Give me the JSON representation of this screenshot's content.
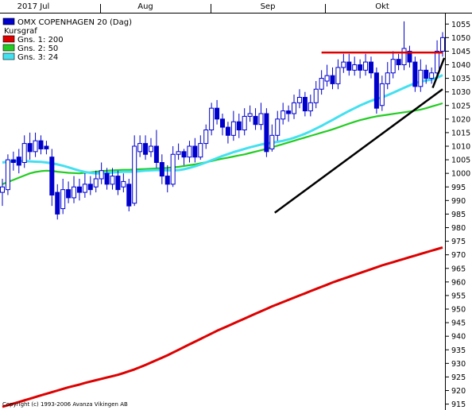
{
  "chart_data": {
    "type": "candlestick",
    "title": "",
    "months": [
      "2017 Jul",
      "Aug",
      "Sep",
      "Okt"
    ],
    "y_ticks": [
      1055,
      1050,
      1045,
      1040,
      1035,
      1030,
      1025,
      1020,
      1015,
      1010,
      1005,
      1000,
      995,
      990,
      985,
      980,
      975,
      970,
      965,
      960,
      955,
      950,
      945,
      940,
      935,
      930,
      925,
      920,
      915
    ],
    "ylim": [
      914,
      1058
    ],
    "legend": [
      {
        "label": "OMX COPENHAGEN 20 (Dag)",
        "color": "#0000cc"
      },
      {
        "label": "Kursgraf",
        "color": ""
      },
      {
        "label": "Gns. 1: 200",
        "color": "#dd0000"
      },
      {
        "label": "Gns. 2: 50",
        "color": "#22cc22"
      },
      {
        "label": "Gns. 3: 24",
        "color": "#44e0f0"
      }
    ],
    "copyright": "Copyright (c) 1993-2006 Avanza Vikingen AB",
    "candles": [
      [
        993,
        995,
        998,
        988
      ],
      [
        994,
        1005,
        1007,
        992
      ],
      [
        1005,
        1004,
        1008,
        1001
      ],
      [
        1006,
        1003,
        1009,
        1000
      ],
      [
        1004,
        1011,
        1014,
        1002
      ],
      [
        1011,
        1008,
        1015,
        1005
      ],
      [
        1008,
        1012,
        1015,
        1006
      ],
      [
        1012,
        1009,
        1014,
        1007
      ],
      [
        1010,
        1009,
        1012,
        1007
      ],
      [
        1006,
        992,
        1009,
        988
      ],
      [
        993,
        985,
        996,
        983
      ],
      [
        987,
        994,
        998,
        985
      ],
      [
        994,
        991,
        997,
        989
      ],
      [
        991,
        995,
        999,
        989
      ],
      [
        995,
        993,
        998,
        990
      ],
      [
        993,
        996,
        1000,
        991
      ],
      [
        996,
        994,
        999,
        992
      ],
      [
        995,
        998,
        1001,
        993
      ],
      [
        998,
        1001,
        1004,
        996
      ],
      [
        1000,
        996,
        1002,
        994
      ],
      [
        996,
        999,
        1002,
        994
      ],
      [
        999,
        994,
        1001,
        992
      ],
      [
        995,
        997,
        1000,
        993
      ],
      [
        996,
        988,
        998,
        986
      ],
      [
        989,
        1010,
        1014,
        988
      ],
      [
        1008,
        1011,
        1014,
        1006
      ],
      [
        1011,
        1007,
        1014,
        1005
      ],
      [
        1008,
        1010,
        1013,
        1006
      ],
      [
        1010,
        1004,
        1016,
        1002
      ],
      [
        1004,
        999,
        1007,
        996
      ],
      [
        999,
        996,
        1003,
        993
      ],
      [
        996,
        1007,
        1010,
        995
      ],
      [
        1007,
        1008,
        1011,
        1005
      ],
      [
        1008,
        1006,
        1009,
        1003
      ],
      [
        1006,
        1010,
        1012,
        1004
      ],
      [
        1010,
        1006,
        1013,
        1004
      ],
      [
        1006,
        1011,
        1014,
        1005
      ],
      [
        1011,
        1016,
        1018,
        1009
      ],
      [
        1016,
        1024,
        1026,
        1014
      ],
      [
        1024,
        1020,
        1027,
        1018
      ],
      [
        1020,
        1017,
        1022,
        1014
      ],
      [
        1017,
        1014,
        1019,
        1011
      ],
      [
        1014,
        1019,
        1023,
        1012
      ],
      [
        1019,
        1016,
        1022,
        1013
      ],
      [
        1016,
        1021,
        1024,
        1014
      ],
      [
        1021,
        1022,
        1025,
        1019
      ],
      [
        1021,
        1018,
        1024,
        1016
      ],
      [
        1018,
        1022,
        1026,
        1016
      ],
      [
        1022,
        1008,
        1024,
        1006
      ],
      [
        1009,
        1014,
        1018,
        1008
      ],
      [
        1014,
        1020,
        1023,
        1012
      ],
      [
        1020,
        1023,
        1026,
        1018
      ],
      [
        1023,
        1022,
        1025,
        1019
      ],
      [
        1022,
        1026,
        1029,
        1020
      ],
      [
        1026,
        1028,
        1031,
        1024
      ],
      [
        1028,
        1023,
        1030,
        1021
      ],
      [
        1023,
        1026,
        1029,
        1021
      ],
      [
        1026,
        1031,
        1034,
        1024
      ],
      [
        1031,
        1035,
        1038,
        1029
      ],
      [
        1034,
        1036,
        1040,
        1032
      ],
      [
        1036,
        1033,
        1039,
        1031
      ],
      [
        1033,
        1039,
        1042,
        1031
      ],
      [
        1039,
        1041,
        1044,
        1037
      ],
      [
        1041,
        1038,
        1044,
        1036
      ],
      [
        1038,
        1040,
        1043,
        1036
      ],
      [
        1040,
        1038,
        1042,
        1035
      ],
      [
        1038,
        1041,
        1044,
        1036
      ],
      [
        1041,
        1037,
        1043,
        1035
      ],
      [
        1037,
        1024,
        1039,
        1022
      ],
      [
        1025,
        1033,
        1036,
        1023
      ],
      [
        1033,
        1037,
        1041,
        1031
      ],
      [
        1037,
        1042,
        1045,
        1035
      ],
      [
        1042,
        1040,
        1044,
        1038
      ],
      [
        1040,
        1046,
        1056,
        1038
      ],
      [
        1045,
        1041,
        1047,
        1039
      ],
      [
        1041,
        1032,
        1043,
        1030
      ],
      [
        1032,
        1038,
        1042,
        1030
      ],
      [
        1038,
        1035,
        1040,
        1033
      ],
      [
        1035,
        1037,
        1039,
        1033
      ],
      [
        1037,
        1045,
        1049,
        1035
      ],
      [
        1045,
        1050,
        1052,
        1043
      ]
    ],
    "ma200": [
      914,
      914.6,
      915.2,
      915.8,
      916.4,
      917,
      917.6,
      918.2,
      918.8,
      919.4,
      920,
      920.6,
      921.2,
      921.7,
      922.2,
      922.8,
      923.3,
      923.8,
      924.3,
      924.8,
      925.3,
      925.8,
      926.4,
      927.1,
      927.8,
      928.6,
      929.4,
      930.3,
      931.2,
      932.1,
      933,
      934,
      935,
      936,
      937,
      938,
      939,
      940,
      941,
      942,
      942.9,
      943.8,
      944.7,
      945.6,
      946.5,
      947.4,
      948.3,
      949.2,
      950.1,
      951,
      951.8,
      952.6,
      953.4,
      954.2,
      955,
      955.8,
      956.6,
      957.4,
      958.2,
      959,
      959.8,
      960.5,
      961.2,
      961.9,
      962.6,
      963.3,
      964,
      964.7,
      965.4,
      966.1,
      966.7,
      967.3,
      967.9,
      968.5,
      969.1,
      969.7,
      970.3,
      970.9,
      971.5,
      972.1,
      972.7
    ],
    "ma50": [
      996,
      996.8,
      997.6,
      998.4,
      999.2,
      1000,
      1000.5,
      1000.8,
      1001,
      1000.9,
      1000.6,
      1000.4,
      1000.2,
      1000.1,
      1000,
      1000.2,
      1000.4,
      1000.6,
      1000.8,
      1001,
      1001.1,
      1001.2,
      1001.3,
      1001.3,
      1001.4,
      1001.5,
      1001.6,
      1001.7,
      1001.8,
      1001.9,
      1002,
      1002.2,
      1002.4,
      1002.7,
      1003,
      1003.3,
      1003.7,
      1004.1,
      1004.5,
      1005,
      1005.4,
      1005.8,
      1006.2,
      1006.6,
      1007,
      1007.5,
      1008,
      1008.5,
      1009,
      1009.6,
      1010.2,
      1010.8,
      1011.4,
      1012,
      1012.6,
      1013.2,
      1013.8,
      1014.4,
      1015,
      1015.6,
      1016.2,
      1016.9,
      1017.6,
      1018.3,
      1019,
      1019.6,
      1020.1,
      1020.6,
      1021,
      1021.3,
      1021.6,
      1021.9,
      1022.2,
      1022.5,
      1022.8,
      1023.1,
      1023.5,
      1024,
      1024.6,
      1025.2,
      1025.8
    ],
    "ma24": [
      1004,
      1004.3,
      1004.5,
      1004.6,
      1004.5,
      1004.4,
      1004.3,
      1004.2,
      1004,
      1003.7,
      1003.3,
      1002.8,
      1002.2,
      1001.6,
      1001,
      1000.5,
      1000.2,
      1000,
      1000,
      1000.1,
      1000.3,
      1000.5,
      1000.6,
      1000.6,
      1000.6,
      1000.8,
      1001,
      1001.1,
      1001.2,
      1001.2,
      1001.1,
      1001.1,
      1001.2,
      1001.5,
      1002,
      1002.6,
      1003.3,
      1004,
      1004.8,
      1005.6,
      1006.4,
      1007.1,
      1007.8,
      1008.4,
      1009,
      1009.6,
      1010.1,
      1010.6,
      1011,
      1011.3,
      1011.6,
      1012,
      1012.5,
      1013.1,
      1013.8,
      1014.6,
      1015.5,
      1016.5,
      1017.5,
      1018.6,
      1019.7,
      1020.8,
      1021.9,
      1023,
      1024,
      1025,
      1025.9,
      1026.7,
      1027.4,
      1028,
      1028.8,
      1029.7,
      1030.6,
      1031.5,
      1032.4,
      1033.2,
      1033.8,
      1034.2,
      1034.6,
      1035.2,
      1036.2
    ],
    "trendlines": [
      {
        "color": "#000000",
        "from": [
          49.5,
          985.5
        ],
        "to": [
          80,
          1031
        ]
      },
      {
        "color": "#dd0000",
        "from": [
          58,
          1044.5
        ],
        "to": [
          80,
          1044.5
        ]
      },
      {
        "color": "#000000",
        "from": [
          78.2,
          1031.5
        ],
        "to": [
          80.3,
          1042.5
        ]
      }
    ]
  }
}
